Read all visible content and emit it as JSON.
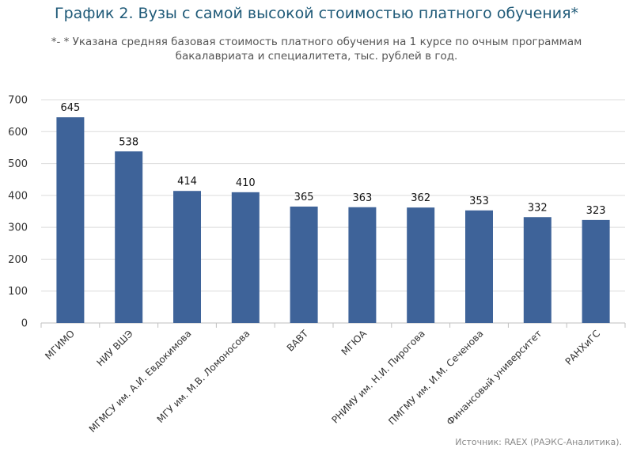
{
  "chart_data": {
    "type": "bar",
    "title": "График 2. Вузы с самой высокой стоимостью платного обучения*",
    "subtitle": "*- * Указана средняя базовая стоимость платного обучения на 1 курсе по очным программам бакалавриата и специалитета, тыс. рублей в год.",
    "source": "Источник: RAEX (РАЭКС-Аналитика).",
    "categories": [
      "МГИМО",
      "НИУ ВШЭ",
      "МГМСУ им. А.И. Евдокимова",
      "МГУ им. М.В. Ломоносова",
      "ВАВТ",
      "МГЮА",
      "РНИМУ им. Н.И. Пирогова",
      "ПМГМУ им. И.М. Сеченова",
      "Финансовый университет",
      "РАНХиГС"
    ],
    "values": [
      645,
      538,
      414,
      410,
      365,
      363,
      362,
      353,
      332,
      323
    ],
    "y_ticks": [
      0,
      100,
      200,
      300,
      400,
      500,
      600,
      700
    ],
    "ylim": [
      0,
      700
    ],
    "xlabel": "",
    "ylabel": "",
    "grid": true,
    "legend": "none",
    "colors": {
      "bar": "#3e6399",
      "grid": "#dcdcdc",
      "axis": "#bfbfbf",
      "text": "#333333"
    }
  }
}
